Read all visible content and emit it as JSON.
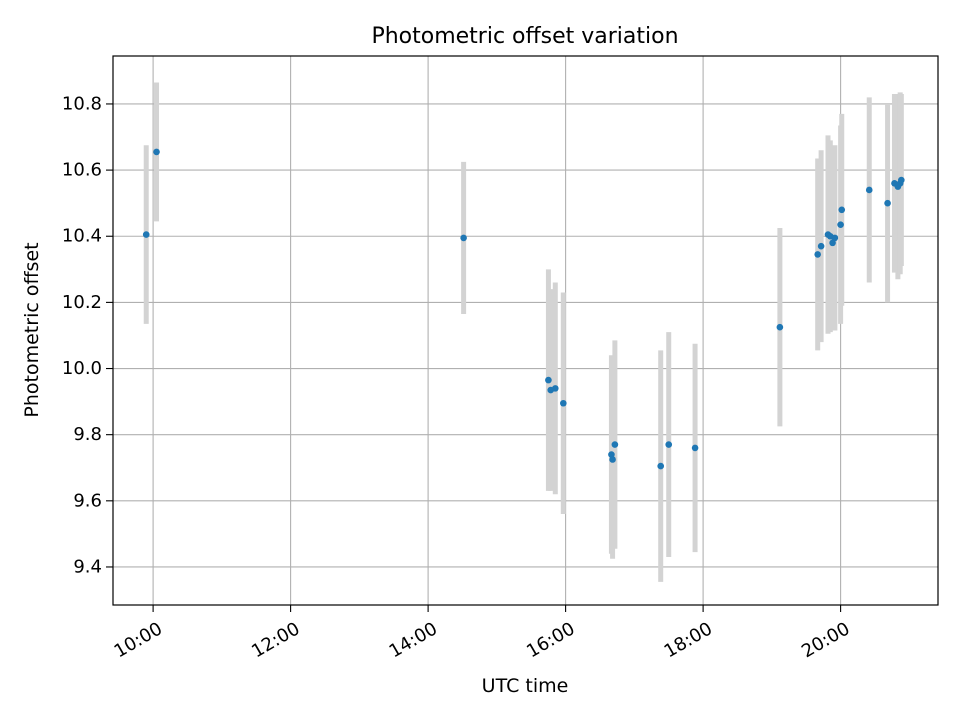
{
  "chart_data": {
    "type": "scatter",
    "title": "Photometric offset variation",
    "xlabel": "UTC time",
    "ylabel": "Photometric offset",
    "x_scale": "time",
    "xlim": [
      "09:25",
      "21:25"
    ],
    "ylim": [
      9.285,
      10.945
    ],
    "x_ticks": [
      "10:00",
      "12:00",
      "14:00",
      "16:00",
      "18:00",
      "20:00"
    ],
    "y_ticks": [
      "9.4",
      "9.6",
      "9.8",
      "10.0",
      "10.2",
      "10.4",
      "10.6",
      "10.8"
    ],
    "grid": true,
    "colors": {
      "points": "#1f77b4",
      "error_bars": "#d3d3d3",
      "grid": "#b0b0b0"
    },
    "series": [
      {
        "points": [
          {
            "x": "09:54",
            "y": 10.405,
            "err": 0.27
          },
          {
            "x": "10:03",
            "y": 10.655,
            "err": 0.21
          },
          {
            "x": "14:31",
            "y": 10.395,
            "err": 0.23
          },
          {
            "x": "15:45",
            "y": 9.965,
            "err": 0.335
          },
          {
            "x": "15:47",
            "y": 9.935,
            "err": 0.305
          },
          {
            "x": "15:51",
            "y": 9.94,
            "err": 0.32
          },
          {
            "x": "15:58",
            "y": 9.895,
            "err": 0.335
          },
          {
            "x": "16:40",
            "y": 9.74,
            "err": 0.3
          },
          {
            "x": "16:41",
            "y": 9.725,
            "err": 0.3
          },
          {
            "x": "16:43",
            "y": 9.77,
            "err": 0.315
          },
          {
            "x": "17:23",
            "y": 9.705,
            "err": 0.35
          },
          {
            "x": "17:30",
            "y": 9.77,
            "err": 0.34
          },
          {
            "x": "17:53",
            "y": 9.76,
            "err": 0.315
          },
          {
            "x": "19:07",
            "y": 10.125,
            "err": 0.3
          },
          {
            "x": "19:40",
            "y": 10.345,
            "err": 0.29
          },
          {
            "x": "19:43",
            "y": 10.37,
            "err": 0.29
          },
          {
            "x": "19:49",
            "y": 10.405,
            "err": 0.3
          },
          {
            "x": "19:51",
            "y": 10.4,
            "err": 0.29
          },
          {
            "x": "19:53",
            "y": 10.38,
            "err": 0.26
          },
          {
            "x": "19:55",
            "y": 10.395,
            "err": 0.28
          },
          {
            "x": "20:00",
            "y": 10.435,
            "err": 0.3
          },
          {
            "x": "20:01",
            "y": 10.48,
            "err": 0.29
          },
          {
            "x": "20:25",
            "y": 10.54,
            "err": 0.28
          },
          {
            "x": "20:41",
            "y": 10.5,
            "err": 0.3
          },
          {
            "x": "20:47",
            "y": 10.56,
            "err": 0.27
          },
          {
            "x": "20:50",
            "y": 10.55,
            "err": 0.28
          },
          {
            "x": "20:52",
            "y": 10.56,
            "err": 0.275
          },
          {
            "x": "20:53",
            "y": 10.57,
            "err": 0.26
          }
        ]
      }
    ]
  }
}
